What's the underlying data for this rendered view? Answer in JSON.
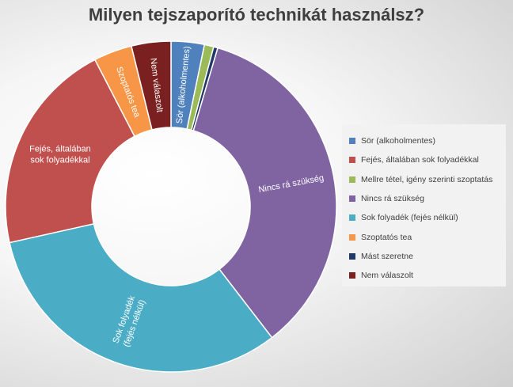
{
  "title": "Milyen tejszaporító technikát használsz?",
  "chart_data": {
    "type": "donut",
    "title": "Milyen tejszaporító technikát használsz?",
    "legend_position": "right",
    "slices": [
      {
        "name": "Sör (alkoholmentes)",
        "value": 3.2,
        "color": "#4f81bd",
        "label": "Sör (alkoholmentes)",
        "show_label": true
      },
      {
        "name": "Mellre tétel, igény szerinti szoptatás",
        "value": 0.9,
        "color": "#9bbb59",
        "label": "",
        "show_label": false
      },
      {
        "name": "Mást szeretne",
        "value": 0.4,
        "color": "#1f3864",
        "label": "",
        "show_label": false
      },
      {
        "name": "Nincs rá szükség",
        "value": 34.5,
        "color": "#8064a2",
        "label": "Nincs rá szükség",
        "show_label": true
      },
      {
        "name": "Sok folyadék (fejés nélkül)",
        "value": 31.5,
        "color": "#4bacc6",
        "label": "Sok folyadék (fejés nélkül)",
        "show_label": true
      },
      {
        "name": "Fejés, általában sok folyadékkal",
        "value": 20.6,
        "color": "#c0504d",
        "label": "Fejés, általában sok folyadékkal",
        "show_label": true
      },
      {
        "name": "Szoptatós tea",
        "value": 3.7,
        "color": "#f79646",
        "label": "Szoptatós tea",
        "show_label": true
      },
      {
        "name": "Nem válaszolt",
        "value": 3.8,
        "color": "#7b2020",
        "label": "Nem válaszolt",
        "show_label": true
      }
    ],
    "legend": [
      {
        "name": "Sör (alkoholmentes)",
        "color": "#4f81bd"
      },
      {
        "name": "Fejés, általában sok folyadékkal",
        "color": "#c0504d"
      },
      {
        "name": "Mellre tétel, igény szerinti szoptatás",
        "color": "#9bbb59"
      },
      {
        "name": "Nincs rá szükség",
        "color": "#8064a2"
      },
      {
        "name": "Sok folyadék (fejés nélkül)",
        "color": "#4bacc6"
      },
      {
        "name": "Szoptatós tea",
        "color": "#f79646"
      },
      {
        "name": "Mást szeretne",
        "color": "#1f3864"
      },
      {
        "name": "Nem válaszolt",
        "color": "#7b2020"
      }
    ]
  }
}
